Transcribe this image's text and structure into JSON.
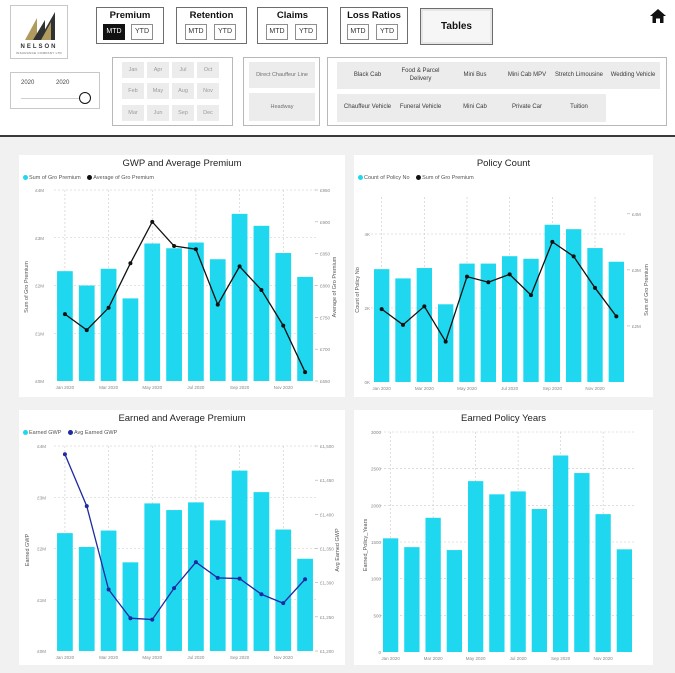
{
  "logo": {
    "line1": "NELSON",
    "line2": "INSURANCE COMPANY LTD"
  },
  "toggles": [
    {
      "label": "Premium",
      "mtd": "MTD",
      "ytd": "YTD",
      "active": "MTD"
    },
    {
      "label": "Retention",
      "mtd": "MTD",
      "ytd": "YTD",
      "active": ""
    },
    {
      "label": "Claims",
      "mtd": "MTD",
      "ytd": "YTD",
      "active": ""
    },
    {
      "label": "Loss Ratios",
      "mtd": "MTD",
      "ytd": "YTD",
      "active": ""
    }
  ],
  "tables_button": "Tables",
  "home_icon": "home-icon",
  "date_slicer": {
    "start": "2020",
    "end": "2020",
    "level": 1.0
  },
  "months": [
    "Jan",
    "Apr",
    "Jul",
    "Oct",
    "Feb",
    "May",
    "Aug",
    "Nov",
    "Mar",
    "Jun",
    "Sep",
    "Dec"
  ],
  "channels": [
    "Direct Chauffeur Line",
    "Headway"
  ],
  "vehicle_types": [
    "Black Cab",
    "Food & Parcel Delivery",
    "Mini Bus",
    "Mini Cab MPV",
    "Stretch Limousine",
    "Wedding Vehicle",
    "Chauffeur Vehicle",
    "Funeral Vehicle",
    "Mini Cab",
    "Private Car",
    "Tuition"
  ],
  "colors": {
    "bar": "#1fd7ee",
    "line": "#111111",
    "line_blue": "#1e2aa0",
    "grid": "#c8c8c8"
  },
  "chart_data": [
    {
      "type": "bar",
      "title": "GWP and Average Premium",
      "categories": [
        "Jan 2020",
        "Feb 2020",
        "Mar 2020",
        "Apr 2020",
        "May 2020",
        "Jun 2020",
        "Jul 2020",
        "Aug 2020",
        "Sep 2020",
        "Oct 2020",
        "Nov 2020",
        "Dec 2020"
      ],
      "x_tick_labels": [
        "Jan 2020",
        "Mar 2020",
        "May 2020",
        "Jul 2020",
        "Sep 2020",
        "Nov 2020"
      ],
      "series": [
        {
          "name": "Sum of Gro Premium",
          "type": "bar",
          "axis": "left",
          "values": [
            2.3,
            2.0,
            2.35,
            1.73,
            2.88,
            2.78,
            2.9,
            2.55,
            3.5,
            3.25,
            2.68,
            2.18
          ]
        },
        {
          "name": "Average of Gro Premium",
          "type": "line",
          "axis": "right",
          "values": [
            755,
            730,
            765,
            835,
            900,
            862,
            857,
            770,
            830,
            793,
            737,
            664
          ]
        }
      ],
      "xlabel": "",
      "ylabel": "Sum of Gro Premium",
      "y2label": "Average of Gro Premium",
      "ylim": [
        0,
        4
      ],
      "y2lim": [
        650,
        950
      ],
      "y_ticks": [
        "£0M",
        "£1M",
        "£2M",
        "£3M",
        "£4M"
      ],
      "y2_ticks": [
        "£650",
        "£700",
        "£750",
        "£800",
        "£850",
        "£900",
        "£950"
      ],
      "grid": true,
      "legend": "top-left"
    },
    {
      "type": "bar",
      "title": "Policy Count",
      "categories": [
        "Jan 2020",
        "Feb 2020",
        "Mar 2020",
        "Apr 2020",
        "May 2020",
        "Jun 2020",
        "Jul 2020",
        "Aug 2020",
        "Sep 2020",
        "Oct 2020",
        "Nov 2020",
        "Dec 2020"
      ],
      "x_tick_labels": [
        "Jan 2020",
        "Mar 2020",
        "May 2020",
        "Jul 2020",
        "Sep 2020",
        "Nov 2020"
      ],
      "series": [
        {
          "name": "Count of Policy No",
          "type": "bar",
          "axis": "left",
          "values": [
            3050,
            2800,
            3080,
            2100,
            3200,
            3200,
            3400,
            3330,
            4250,
            4130,
            3620,
            3250
          ]
        },
        {
          "name": "Sum of Gro Premium",
          "type": "line",
          "axis": "right",
          "values": [
            2.3,
            2.02,
            2.35,
            1.72,
            2.88,
            2.78,
            2.92,
            2.55,
            3.5,
            3.24,
            2.68,
            2.17
          ]
        }
      ],
      "xlabel": "",
      "ylabel": "Count of Policy No",
      "y2label": "Sum of Gro Premium",
      "ylim": [
        0,
        5000
      ],
      "y2lim": [
        1.0,
        4.3
      ],
      "y_ticks": [
        "0K",
        "2K",
        "4K"
      ],
      "y2_ticks": [
        "£2M",
        "£3M",
        "£4M"
      ],
      "grid": true,
      "legend": "top-left"
    },
    {
      "type": "bar",
      "title": "Earned and Average Premium",
      "categories": [
        "Jan 2020",
        "Feb 2020",
        "Mar 2020",
        "Apr 2020",
        "May 2020",
        "Jun 2020",
        "Jul 2020",
        "Aug 2020",
        "Sep 2020",
        "Oct 2020",
        "Nov 2020",
        "Dec 2020"
      ],
      "x_tick_labels": [
        "Jan 2020",
        "Mar 2020",
        "May 2020",
        "Jul 2020",
        "Sep 2020",
        "Nov 2020"
      ],
      "series": [
        {
          "name": "Earned GWP",
          "type": "bar",
          "axis": "left",
          "values": [
            2.3,
            2.03,
            2.35,
            1.73,
            2.88,
            2.75,
            2.9,
            2.55,
            3.52,
            3.1,
            2.37,
            1.8
          ]
        },
        {
          "name": "Avg Earned GWP",
          "type": "line",
          "axis": "right",
          "values": [
            1488,
            1412,
            1290,
            1248,
            1246,
            1292,
            1330,
            1307,
            1306,
            1283,
            1270,
            1305
          ]
        }
      ],
      "xlabel": "",
      "ylabel": "Earned GWP",
      "y2label": "Avg Earned GWP",
      "ylim": [
        0,
        4
      ],
      "y2lim": [
        1200,
        1500
      ],
      "y_ticks": [
        "£0M",
        "£1M",
        "£2M",
        "£3M",
        "£4M"
      ],
      "y2_ticks": [
        "£1,200",
        "£1,250",
        "£1,300",
        "£1,350",
        "£1,400",
        "£1,450",
        "£1,500"
      ],
      "grid": true,
      "legend": "top-left"
    },
    {
      "type": "bar",
      "title": "Earned Policy Years",
      "categories": [
        "Jan 2020",
        "Feb 2020",
        "Mar 2020",
        "Apr 2020",
        "May 2020",
        "Jun 2020",
        "Jul 2020",
        "Aug 2020",
        "Sep 2020",
        "Oct 2020",
        "Nov 2020",
        "Dec 2020"
      ],
      "x_tick_labels": [
        "Jan 2020",
        "Mar 2020",
        "May 2020",
        "Jul 2020",
        "Sep 2020",
        "Nov 2020"
      ],
      "series": [
        {
          "name": "Earned_Policy_Years",
          "type": "bar",
          "axis": "left",
          "values": [
            1550,
            1430,
            1830,
            1390,
            2330,
            2150,
            2190,
            1950,
            2680,
            2440,
            1880,
            1400
          ]
        }
      ],
      "xlabel": "",
      "ylabel": "Earned_Policy_Years",
      "ylim": [
        0,
        3000
      ],
      "y_ticks": [
        "0",
        "500",
        "1000",
        "1500",
        "2000",
        "2500",
        "3000"
      ],
      "grid": true,
      "legend": "none"
    }
  ]
}
